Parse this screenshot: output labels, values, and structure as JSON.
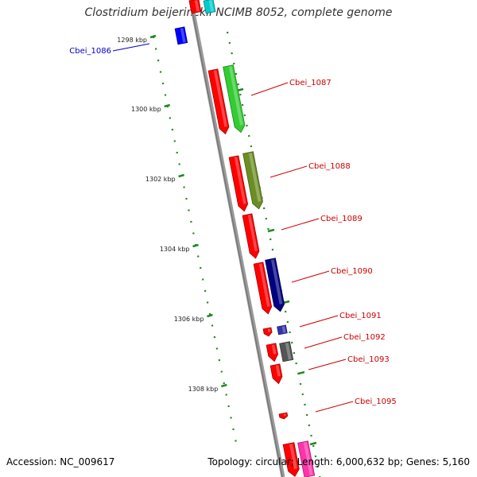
{
  "title": "Clostridium beijerinckii NCIMB 8052, complete genome",
  "accession": "Accession: NC_009617",
  "summary": "Topology: circular; Length: 6,000,632 bp; Genes: 5,160",
  "colors": {
    "backbone": "#888888",
    "ruler": "#228822",
    "forward_label": "#cc0000",
    "reverse_label": "#0000cc",
    "strand_gene": "#ff0000"
  },
  "ruler": {
    "ticks": [
      "1298 kbp",
      "1300 kbp",
      "1302 kbp",
      "1304 kbp",
      "1306 kbp",
      "1308 kbp"
    ]
  },
  "genes": [
    {
      "name": "Cbei_1086",
      "color": "#0000ff",
      "label_color": "#0000cc"
    },
    {
      "name": "Cbei_1087",
      "color": "#33cc33",
      "label_color": "#cc0000"
    },
    {
      "name": "Cbei_1088",
      "color": "#6b8e23",
      "label_color": "#cc0000"
    },
    {
      "name": "Cbei_1089",
      "color": "#ff0000",
      "label_color": "#cc0000"
    },
    {
      "name": "Cbei_1090",
      "color": "#000080",
      "label_color": "#cc0000"
    },
    {
      "name": "Cbei_1091",
      "color": "#3333aa",
      "label_color": "#cc0000"
    },
    {
      "name": "Cbei_1092",
      "color": "#555555",
      "label_color": "#cc0000"
    },
    {
      "name": "Cbei_1093",
      "color": "#ff0000",
      "label_color": "#cc0000"
    },
    {
      "name": "Cbei_1095",
      "color": "#ff0000",
      "label_color": "#cc0000"
    }
  ]
}
